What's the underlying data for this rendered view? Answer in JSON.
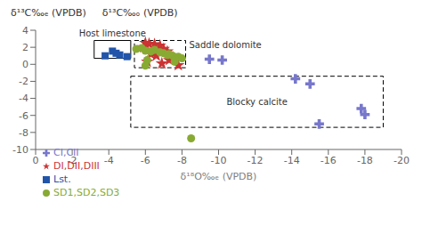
{
  "chart_data": {
    "type": "scatter",
    "xlabel": "δ¹⁸O‰ₑ (VPDB)",
    "ylabel": "δ¹³C‰ₑ (VPDB)",
    "annotations": [
      "δ¹³C‰ₒ (VPDB)"
    ],
    "xlim": [
      0,
      -20
    ],
    "ylim": [
      -10,
      4
    ],
    "xticks": [
      0,
      -2,
      -4,
      -6,
      -8,
      -10,
      -12,
      -14,
      -16,
      -18,
      -20
    ],
    "yticks": [
      -10,
      -8,
      -6,
      -4,
      -2,
      0,
      2,
      4
    ],
    "grid": false,
    "legend": "lower left",
    "series": [
      {
        "name": "Lst.",
        "color": "#2255aa",
        "marker": "square",
        "x": [
          -4.2,
          -4.6,
          -3.8,
          -5.0,
          -4.4
        ],
        "values": [
          1.55,
          1.1,
          1.0,
          0.9,
          1.3
        ]
      },
      {
        "name": "DI,DII,DIII",
        "color": "#cc3333",
        "marker": "star",
        "x": [
          -6.0,
          -6.2,
          -6.5,
          -6.8,
          -7.0,
          -7.2,
          -6.3,
          -6.6,
          -7.5,
          -7.3,
          -6.1,
          -6.9,
          -7.8,
          -5.9,
          -6.4
        ],
        "values": [
          2.5,
          2.4,
          2.35,
          2.2,
          1.8,
          1.5,
          1.2,
          1.0,
          0.8,
          0.5,
          0.3,
          0.1,
          -0.1,
          2.0,
          1.7
        ]
      },
      {
        "name": "SD1,SD2,SD3",
        "color": "#88aa33",
        "marker": "circle",
        "x": [
          -5.8,
          -6.0,
          -6.3,
          -7.0,
          -7.2,
          -7.5,
          -7.8,
          -8.0,
          -6.5,
          -6.8,
          -7.3,
          -5.5,
          -6.1,
          -7.6,
          -6.0,
          -8.5
        ],
        "values": [
          1.9,
          1.6,
          1.5,
          1.3,
          1.1,
          1.0,
          0.9,
          0.7,
          1.7,
          1.4,
          1.2,
          1.8,
          0.5,
          0.3,
          -0.15,
          -8.7
        ]
      },
      {
        "name": "CI,CII",
        "color": "#7777cc",
        "marker": "x",
        "x": [
          -9.5,
          -10.2,
          -14.2,
          -15.0,
          -17.8,
          -18.0,
          -15.5
        ],
        "values": [
          0.6,
          0.5,
          -1.7,
          -2.3,
          -5.2,
          -5.9,
          -7.0
        ]
      }
    ],
    "regions": [
      {
        "label": "Host limestone",
        "x": [
          -5.2,
          -3.2
        ],
        "y": [
          0.7,
          2.8
        ],
        "line_style": "solid"
      },
      {
        "label": "Saddle dolomite",
        "x": [
          -8.2,
          -5.4
        ],
        "y": [
          -0.4,
          2.8
        ],
        "line_style": "dashed"
      },
      {
        "label": "Blocky calcite",
        "x": [
          -19.0,
          -5.2
        ],
        "y": [
          -7.4,
          -1.4
        ],
        "line_style": "dashed"
      }
    ]
  }
}
